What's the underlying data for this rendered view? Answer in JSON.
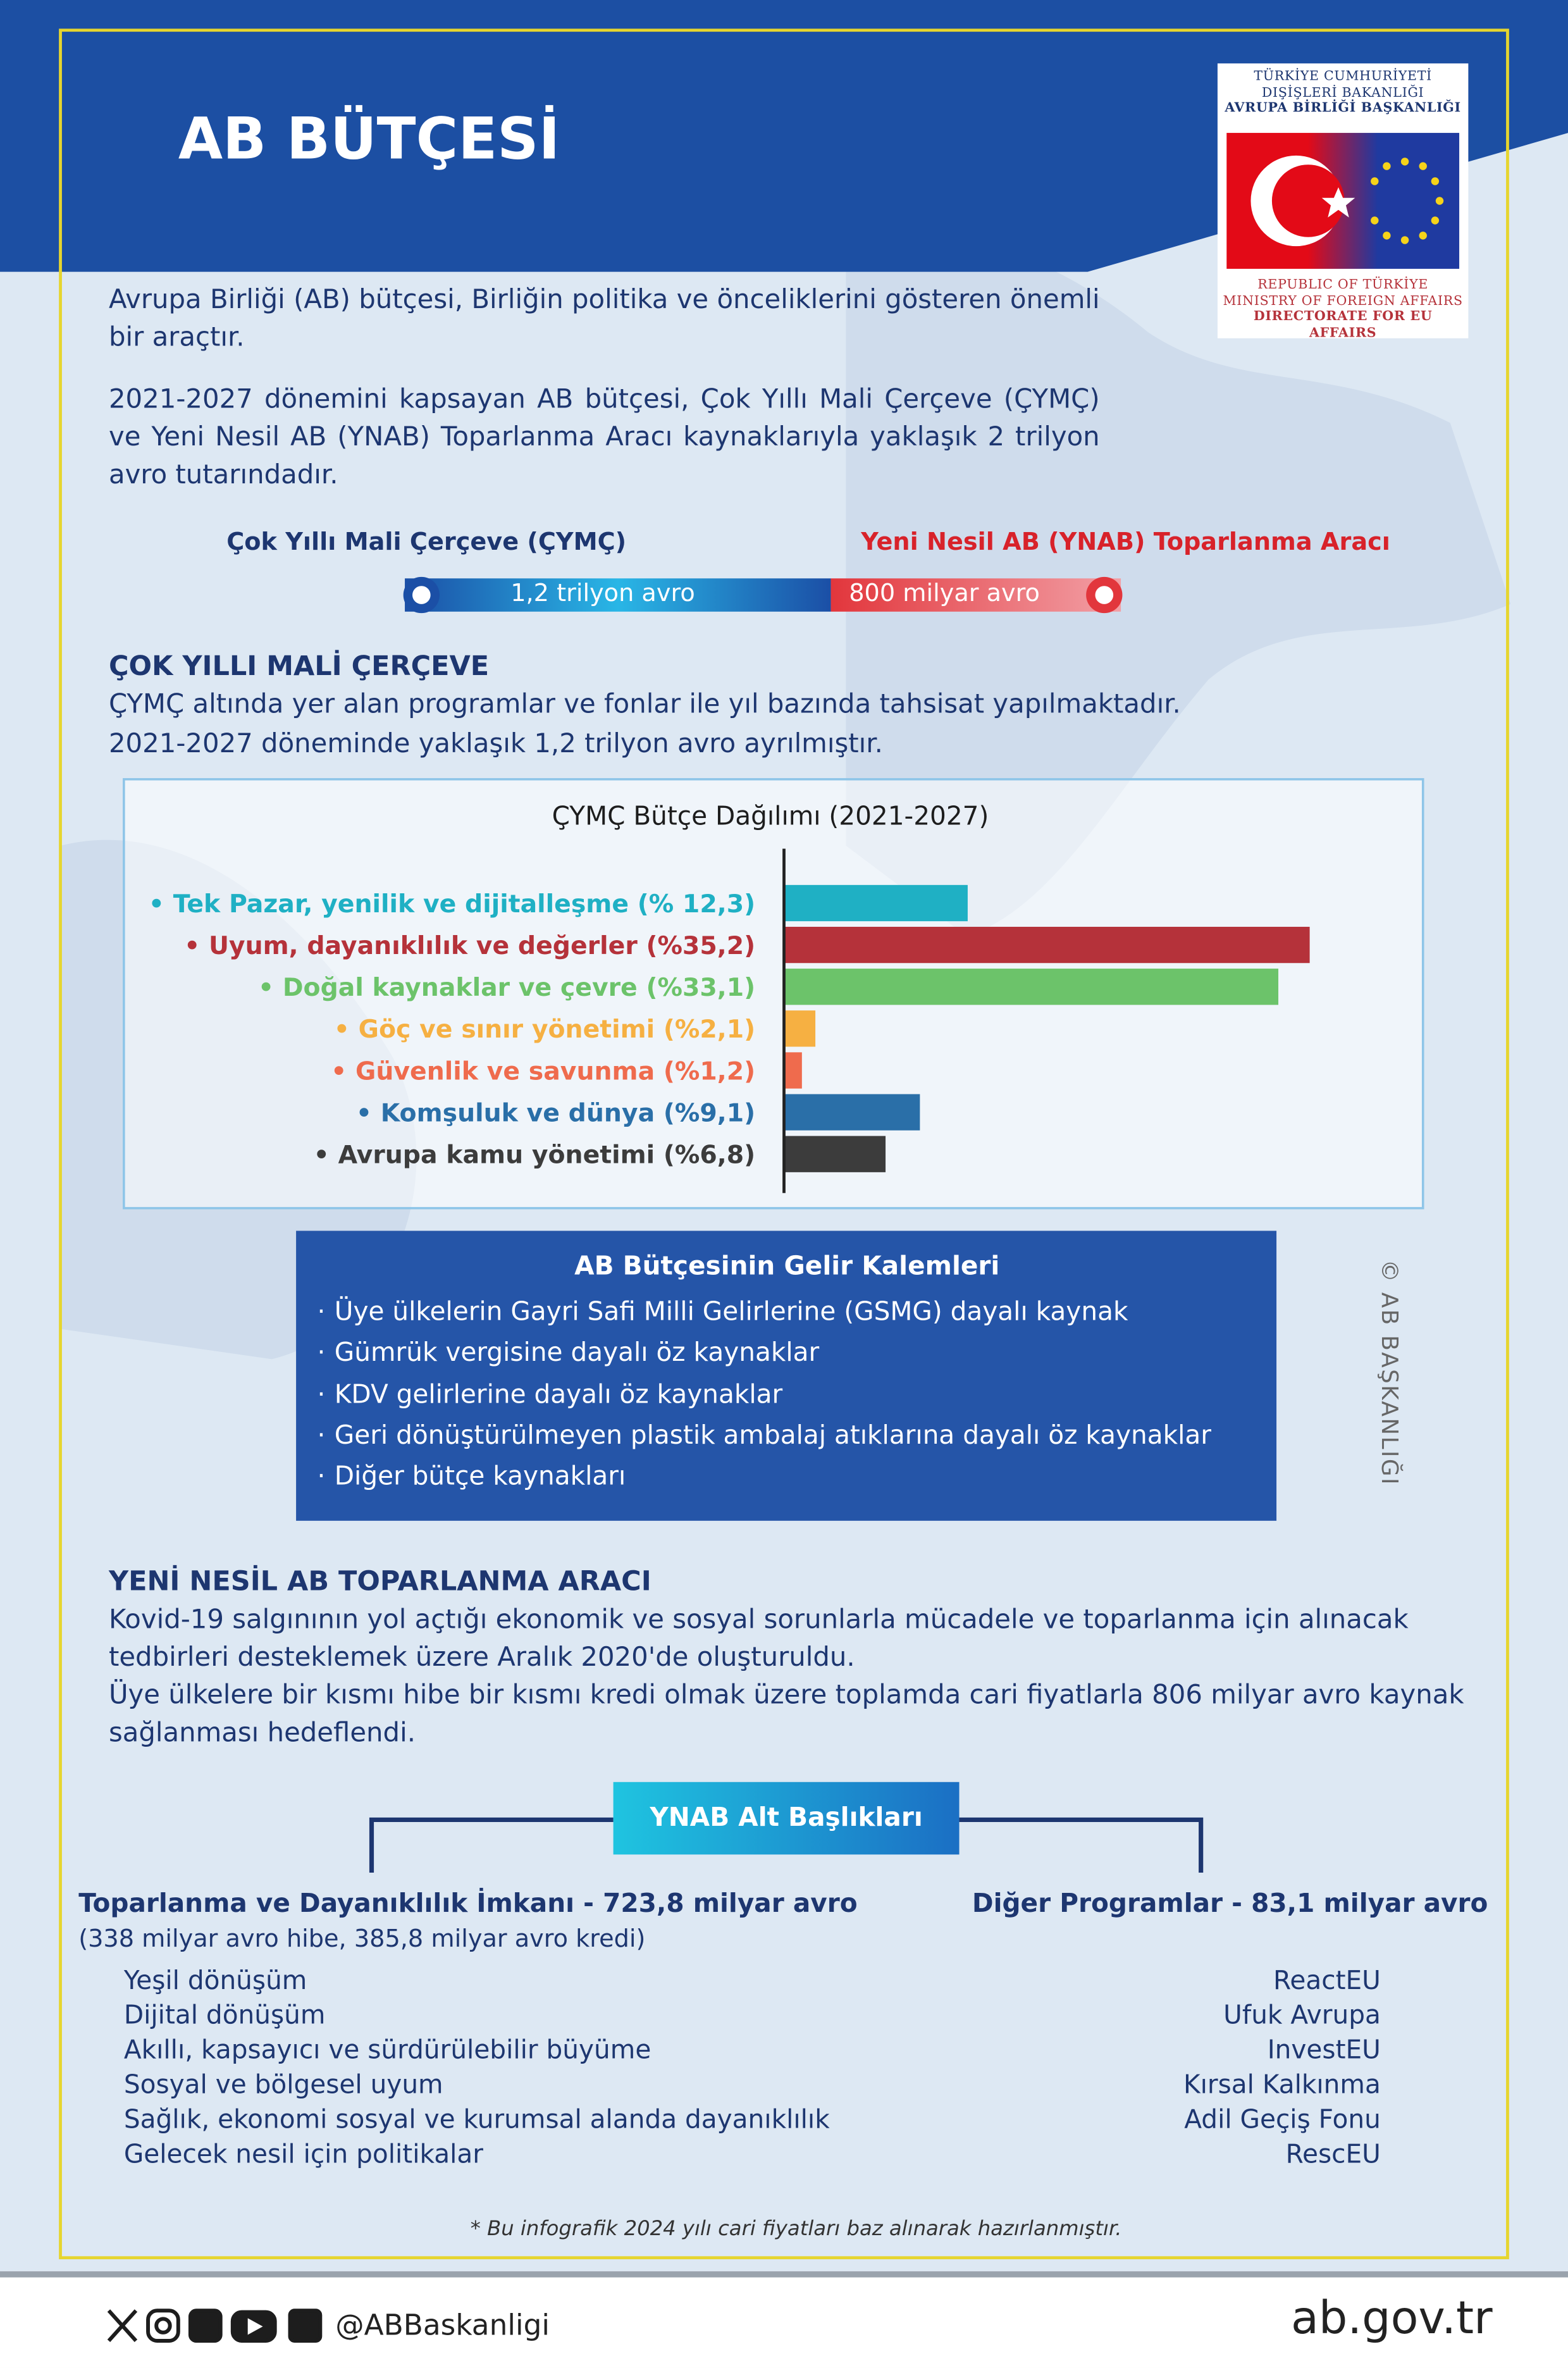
{
  "header": {
    "title": "AB BÜTÇESİ",
    "logo": {
      "tr_lines": [
        "TÜRKİYE CUMHURİYETİ",
        "DIŞİŞLERİ BAKANLIĞI",
        "AVRUPA BİRLİĞİ BAŞKANLIĞI"
      ],
      "en_lines": [
        "REPUBLIC OF TÜRKİYE",
        "MINISTRY OF FOREIGN AFFAIRS",
        "DIRECTORATE FOR EU AFFAIRS"
      ]
    }
  },
  "intro": {
    "paragraphs": [
      "Avrupa Birliği (AB) bütçesi, Birliğin politika ve önceliklerini gösteren önemli bir araçtır.",
      "2021-2027 dönemini kapsayan AB bütçesi, Çok Yıllı Mali Çerçeve (ÇYMÇ) ve Yeni Nesil AB (YNAB) Toparlanma Aracı kaynaklarıyla yaklaşık 2 trilyon avro tutarındadır."
    ]
  },
  "budget_bar": {
    "left_label": "Çok Yıllı Mali Çerçeve (ÇYMÇ)",
    "left_value": "1,2 trilyon avro",
    "right_label": "Yeni Nesil AB (YNAB) Toparlanma Aracı",
    "right_value": "800 milyar avro"
  },
  "mff": {
    "heading": "ÇOK YILLI MALİ ÇERÇEVE",
    "paragraphs": [
      "ÇYMÇ altında yer alan programlar ve fonlar ile yıl bazında tahsisat yapılmaktadır.",
      "2021-2027 döneminde yaklaşık 1,2 trilyon avro ayrılmıştır."
    ]
  },
  "chart_data": {
    "type": "bar",
    "orientation": "horizontal",
    "title": "ÇYMÇ Bütçe Dağılımı (2021-2027)",
    "categories": [
      "• Tek Pazar, yenilik ve dijitalleşme (% 12,3)",
      "• Uyum, dayanıklılık ve değerler (%35,2)",
      "• Doğal kaynaklar ve çevre (%33,1)",
      "• Göç ve sınır yönetimi (%2,1)",
      "• Güvenlik ve savunma (%1,2)",
      "• Komşuluk ve dünya (%9,1)",
      "• Avrupa kamu yönetimi (%6,8)"
    ],
    "values": [
      12.3,
      35.2,
      33.1,
      2.1,
      1.2,
      9.1,
      6.8
    ],
    "colors": [
      "#1fb0c4",
      "#b5323a",
      "#6cc36a",
      "#f6b042",
      "#ef6b4d",
      "#2a6fa8",
      "#3c3c3c"
    ]
  },
  "revenue": {
    "title": "AB Bütçesinin Gelir Kalemleri",
    "items": [
      "Üye ülkelerin Gayri Safi Milli Gelirlerine (GSMG) dayalı kaynak",
      "Gümrük vergisine dayalı öz kaynaklar",
      "KDV gelirlerine dayalı öz kaynaklar",
      "Geri dönüştürülmeyen plastik ambalaj atıklarına dayalı öz kaynaklar",
      "Diğer bütçe kaynakları"
    ]
  },
  "side_credit": "© AB BAŞKANLIĞI",
  "ngeu": {
    "heading": "YENİ NESİL AB TOPARLANMA ARACI",
    "paragraphs": [
      "Kovid-19 salgınının yol açtığı ekonomik ve sosyal sorunlarla mücadele ve toparlanma için alınacak tedbirleri desteklemek üzere Aralık 2020'de oluşturuldu.",
      "Üye ülkelere bir kısmı hibe bir kısmı kredi olmak üzere toplamda cari fiyatlarla 806 milyar avro kaynak sağlanması hedeflendi."
    ]
  },
  "subheadings": {
    "title": "YNAB Alt Başlıkları",
    "left": {
      "title": "Toparlanma ve Dayanıklılık İmkanı - 723,8 milyar avro",
      "note": "(338 milyar avro hibe, 385,8 milyar avro kredi)",
      "items": [
        "Yeşil dönüşüm",
        "Dijital dönüşüm",
        "Akıllı, kapsayıcı ve sürdürülebilir büyüme",
        "Sosyal ve bölgesel uyum",
        "Sağlık, ekonomi sosyal ve kurumsal alanda dayanıklılık",
        "Gelecek nesil için politikalar"
      ]
    },
    "right": {
      "title": "Diğer Programlar - 83,1 milyar avro",
      "items": [
        "ReactEU",
        "Ufuk Avrupa",
        "InvestEU",
        "Kırsal Kalkınma",
        "Adil Geçiş Fonu",
        "RescEU"
      ]
    }
  },
  "footnote": "* Bu infografik 2024 yılı cari fiyatları baz alınarak hazırlanmıştır.",
  "footer": {
    "handle": "@ABBaskanligi",
    "url": "ab.gov.tr"
  }
}
